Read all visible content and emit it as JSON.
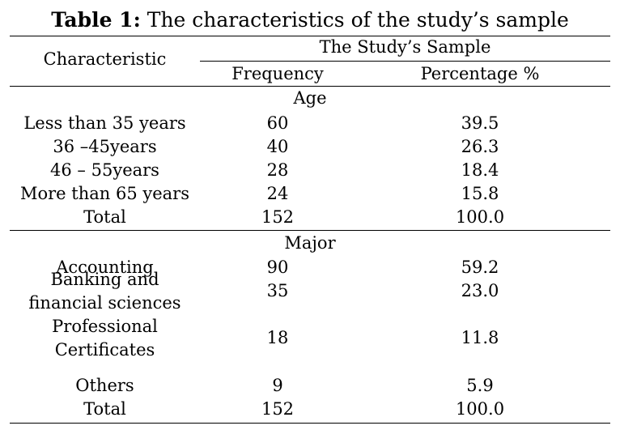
{
  "caption": {
    "label": "Table 1:",
    "text": "The characteristics of the study’s sample"
  },
  "header": {
    "characteristic": "Characteristic",
    "group": "The Study’s Sample",
    "frequency": "Frequency",
    "percentage": "Percentage %"
  },
  "sections": [
    {
      "title": "Age",
      "rows": [
        {
          "label": [
            "Less than 35 years"
          ],
          "frequency": "60",
          "percentage": "39.5"
        },
        {
          "label": [
            "36 –45years"
          ],
          "frequency": "40",
          "percentage": "26.3"
        },
        {
          "label": [
            "46 – 55years"
          ],
          "frequency": "28",
          "percentage": "18.4"
        },
        {
          "label": [
            "More than 65 years"
          ],
          "frequency": "24",
          "percentage": "15.8"
        },
        {
          "label": [
            "Total"
          ],
          "frequency": "152",
          "percentage": "100.0"
        }
      ]
    },
    {
      "title": "Major",
      "rows": [
        {
          "label": [
            "Accounting"
          ],
          "frequency": "90",
          "percentage": "59.2"
        },
        {
          "label": [
            "Banking and",
            "financial sciences"
          ],
          "frequency": "35",
          "percentage": "23.0"
        },
        {
          "label": [
            "Professional",
            "Certificates"
          ],
          "frequency": "18",
          "percentage": "11.8"
        },
        {
          "label": [
            "Others"
          ],
          "frequency": "9",
          "percentage": "5.9"
        },
        {
          "label": [
            "Total"
          ],
          "frequency": "152",
          "percentage": "100.0"
        }
      ]
    }
  ]
}
